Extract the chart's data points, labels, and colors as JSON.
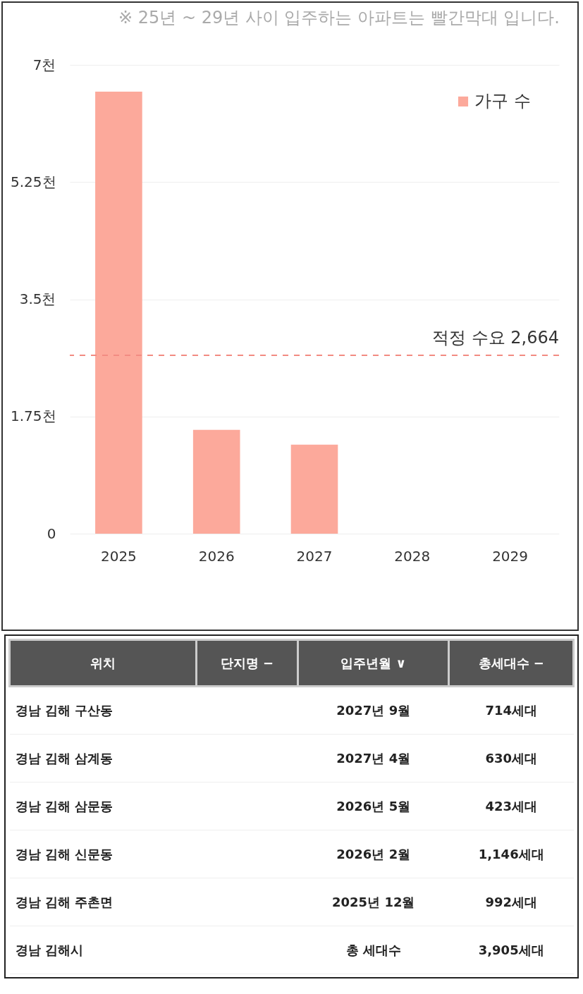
{
  "chart_data": [
    {
      "type": "bar",
      "categories": [
        "2025",
        "2026",
        "2027",
        "2028",
        "2029"
      ],
      "series": [
        {
          "name": "가구 수",
          "color": "#fca99b",
          "values": [
            6.6,
            1.55,
            1.33,
            0,
            0
          ]
        }
      ],
      "ylim": [
        0,
        7
      ],
      "yticks": [
        0,
        {
          "value": 1.75,
          "label": "1.75천"
        },
        {
          "value": 3.5,
          "label": "3.5천"
        },
        {
          "value": 5.25,
          "label": "5.25천"
        },
        {
          "value": 7,
          "label": "7천"
        }
      ],
      "grid": "y",
      "legend": "top right",
      "ref_lines": [
        {
          "axis": "y",
          "value": 2.664,
          "label": "적정 수요 2,664",
          "color": "#f28b82",
          "line_style": "dashed"
        }
      ],
      "annotations": [
        "※ 25년 ~ 29년 사이 입주하는 아파트는 빨간막대 입니다."
      ]
    },
    {
      "type": "other",
      "categories": [
        "위치",
        "단지명 −",
        "입주년월 ∨",
        "총세대수 −"
      ],
      "cell_labels": [
        [
          "경남 김해 구산동",
          null,
          "2027년 9월",
          "714세대"
        ],
        [
          "경남 김해 삼계동",
          null,
          "2027년 4월",
          "630세대"
        ],
        [
          "경남 김해 삼문동",
          null,
          "2026년 5월",
          "423세대"
        ],
        [
          "경남 김해 신문동",
          null,
          "2026년 2월",
          "1,146세대"
        ],
        [
          "경남 김해 주촌면",
          null,
          "2025년 12월",
          "992세대"
        ],
        [
          "경남 김해시",
          null,
          "총 세대수",
          "3,905세대"
        ]
      ]
    }
  ]
}
